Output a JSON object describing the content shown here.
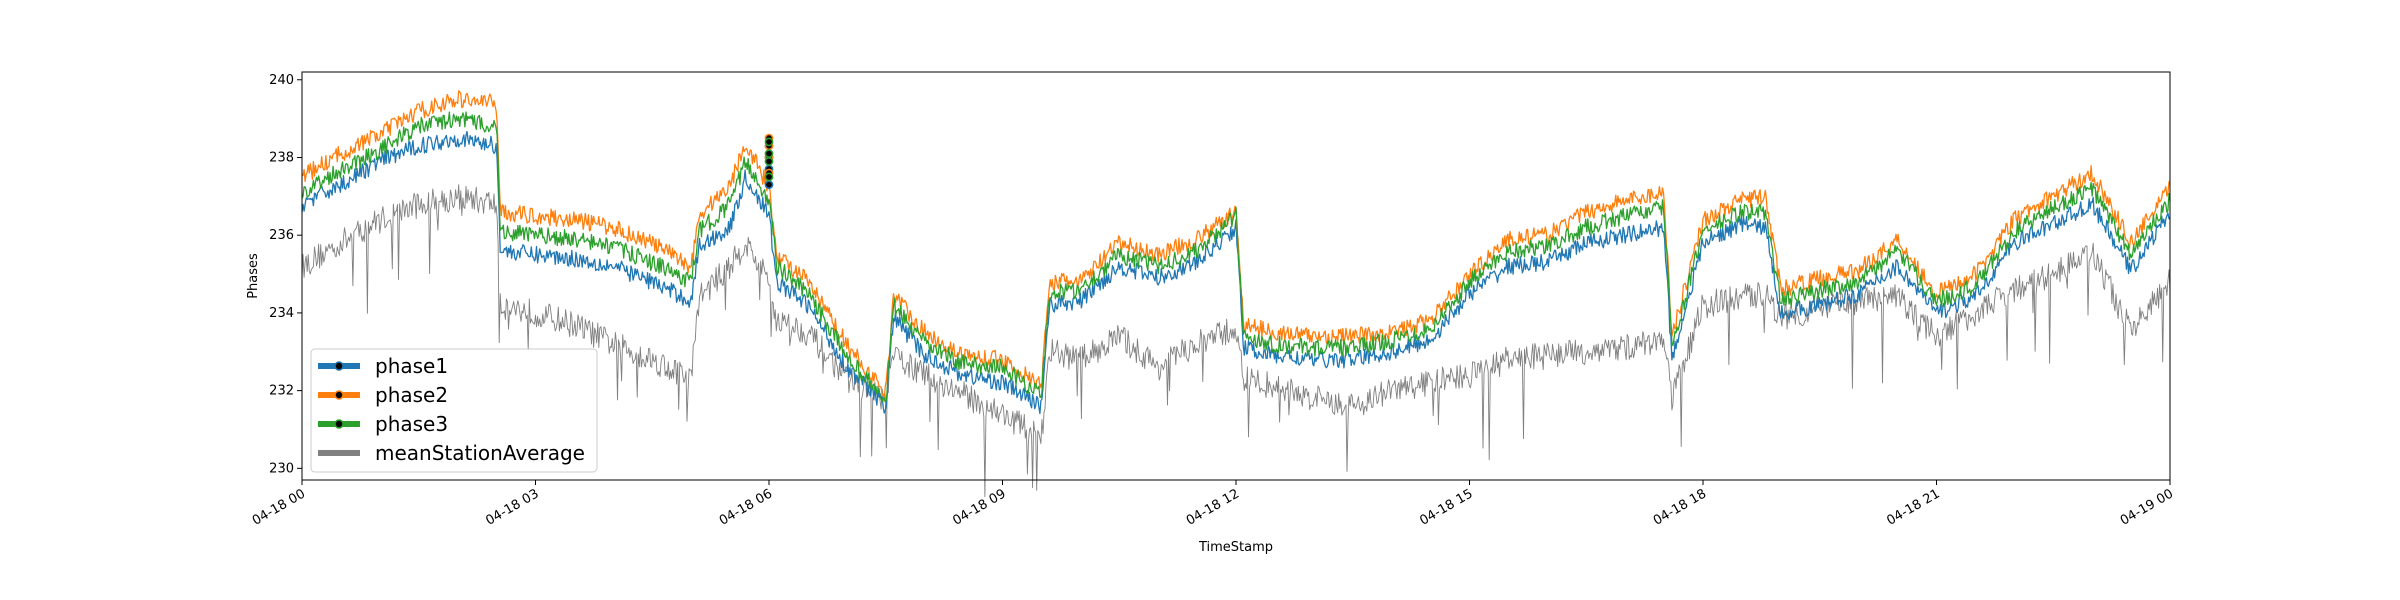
{
  "chart_data": {
    "type": "line",
    "title": "",
    "xlabel": "TimeStamp",
    "ylabel": "Phases",
    "xlim": [
      "04-18 00:00",
      "04-19 00:00"
    ],
    "ylim": [
      229.7,
      240.2
    ],
    "x_ticks": [
      "04-18 00",
      "04-18 03",
      "04-18 06",
      "04-18 09",
      "04-18 12",
      "04-18 15",
      "04-18 18",
      "04-18 21",
      "04-19 00"
    ],
    "y_ticks": [
      230,
      232,
      234,
      236,
      238,
      240
    ],
    "grid": false,
    "legend": "lower-left",
    "x_hours": [
      0,
      0.5,
      1,
      1.5,
      2,
      2.5,
      2.55,
      3,
      3.5,
      4,
      4.5,
      5,
      5.1,
      5.5,
      5.7,
      6,
      6.1,
      6.5,
      7,
      7.5,
      7.6,
      8,
      8.5,
      9,
      9.5,
      9.6,
      10,
      10.5,
      11,
      11.5,
      12,
      12.1,
      12.5,
      13,
      13.5,
      14,
      14.5,
      15,
      15.5,
      16,
      16.5,
      17,
      17.5,
      17.6,
      18,
      18.5,
      18.8,
      19,
      19.5,
      20,
      20.5,
      21,
      21.5,
      22,
      22.5,
      23,
      23.5,
      24
    ],
    "series": [
      {
        "name": "phase1",
        "color": "#1f77b4",
        "values": [
          236.8,
          237.3,
          237.9,
          238.3,
          238.5,
          238.3,
          235.6,
          235.5,
          235.4,
          235.2,
          234.8,
          234.3,
          235.7,
          236.2,
          237.5,
          236.5,
          234.8,
          234.2,
          232.6,
          231.6,
          233.9,
          232.9,
          232.4,
          232.2,
          231.6,
          234.2,
          234.3,
          235.2,
          234.9,
          235.3,
          236.2,
          233.1,
          232.9,
          232.8,
          232.8,
          233.0,
          233.3,
          234.5,
          235.2,
          235.3,
          235.8,
          236.0,
          236.2,
          232.8,
          235.8,
          236.3,
          236.2,
          234.0,
          234.2,
          234.5,
          235.2,
          234.0,
          234.4,
          235.8,
          236.3,
          236.8,
          235.1,
          236.6
        ]
      },
      {
        "name": "phase2",
        "color": "#ff7f0e",
        "values": [
          237.5,
          238.1,
          238.6,
          239.2,
          239.5,
          239.4,
          236.6,
          236.5,
          236.4,
          236.2,
          235.8,
          235.2,
          236.5,
          237.3,
          238.4,
          237.2,
          235.5,
          234.8,
          233.2,
          231.9,
          234.5,
          233.5,
          232.9,
          232.8,
          232.1,
          234.8,
          234.8,
          235.8,
          235.5,
          235.9,
          236.6,
          233.7,
          233.5,
          233.4,
          233.4,
          233.5,
          233.8,
          235.0,
          235.9,
          236.0,
          236.6,
          236.9,
          237.1,
          233.4,
          236.4,
          236.9,
          237.0,
          234.6,
          234.9,
          235.1,
          235.9,
          234.5,
          235.0,
          236.4,
          237.0,
          237.6,
          235.8,
          237.2
        ]
      },
      {
        "name": "phase3",
        "color": "#2ca02c",
        "values": [
          237.1,
          237.7,
          238.2,
          238.8,
          239.0,
          238.8,
          236.1,
          236.0,
          235.9,
          235.7,
          235.3,
          234.8,
          236.1,
          236.8,
          237.9,
          236.9,
          235.2,
          234.5,
          232.9,
          231.7,
          234.2,
          233.2,
          232.7,
          232.6,
          231.9,
          234.5,
          234.6,
          235.5,
          235.2,
          235.6,
          236.5,
          233.4,
          233.2,
          233.1,
          233.1,
          233.3,
          233.6,
          234.8,
          235.6,
          235.7,
          236.2,
          236.5,
          236.7,
          233.1,
          236.1,
          236.6,
          236.6,
          234.3,
          234.6,
          234.8,
          235.6,
          234.3,
          234.7,
          236.1,
          236.7,
          237.2,
          235.5,
          236.9
        ]
      },
      {
        "name": "meanStationAverage",
        "color": "#808080",
        "values": [
          235.2,
          235.8,
          236.4,
          236.8,
          237.0,
          236.8,
          234.2,
          234.0,
          233.7,
          233.2,
          232.8,
          232.3,
          234.4,
          235.2,
          235.8,
          234.8,
          233.8,
          233.5,
          232.3,
          231.8,
          232.9,
          232.4,
          231.9,
          231.4,
          230.8,
          233.0,
          232.8,
          233.4,
          232.6,
          233.2,
          233.6,
          232.3,
          232.1,
          231.8,
          231.6,
          232.0,
          232.2,
          232.4,
          232.8,
          232.9,
          233.0,
          233.1,
          233.3,
          231.8,
          234.2,
          234.4,
          234.5,
          233.9,
          234.1,
          234.3,
          234.4,
          233.4,
          234.0,
          234.6,
          235.0,
          235.6,
          233.5,
          234.8
        ]
      }
    ],
    "markers": [
      {
        "series": "phase1",
        "x_hour": 6.0,
        "values": [
          237.3,
          237.7,
          238.0,
          238.3
        ]
      },
      {
        "series": "phase2",
        "x_hour": 6.0,
        "values": [
          237.6,
          238.0,
          238.3,
          238.5
        ]
      },
      {
        "series": "phase3",
        "x_hour": 6.0,
        "values": [
          237.5,
          237.9,
          238.1,
          238.4
        ]
      }
    ]
  }
}
